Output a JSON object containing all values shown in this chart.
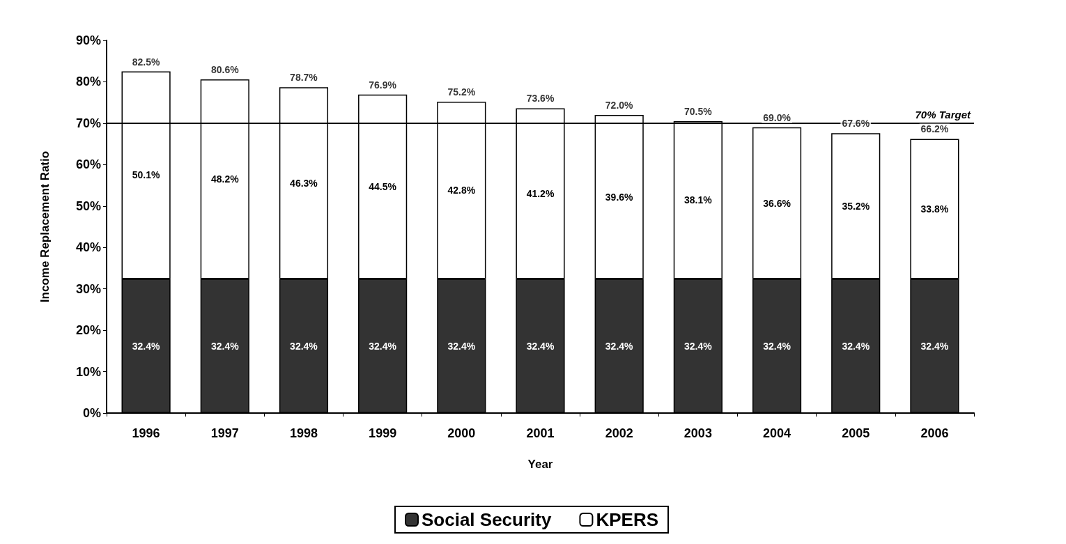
{
  "chart_data": {
    "type": "bar",
    "stacked": true,
    "xlabel": "Year",
    "ylabel": "Income Replacement Ratio",
    "categories": [
      "1996",
      "1997",
      "1998",
      "1999",
      "2000",
      "2001",
      "2002",
      "2003",
      "2004",
      "2005",
      "2006"
    ],
    "series": [
      {
        "name": "Social Security",
        "color": "#333333",
        "values": [
          32.4,
          32.4,
          32.4,
          32.4,
          32.4,
          32.4,
          32.4,
          32.4,
          32.4,
          32.4,
          32.4
        ],
        "value_labels": [
          "32.4%",
          "32.4%",
          "32.4%",
          "32.4%",
          "32.4%",
          "32.4%",
          "32.4%",
          "32.4%",
          "32.4%",
          "32.4%",
          "32.4%"
        ]
      },
      {
        "name": "KPERS",
        "color": "#ffffff",
        "values": [
          50.1,
          48.2,
          46.3,
          44.5,
          42.8,
          41.2,
          39.6,
          38.1,
          36.6,
          35.2,
          33.8
        ],
        "value_labels": [
          "50.1%",
          "48.2%",
          "46.3%",
          "44.5%",
          "42.8%",
          "41.2%",
          "39.6%",
          "38.1%",
          "36.6%",
          "35.2%",
          "33.8%"
        ]
      }
    ],
    "totals": [
      "82.5%",
      "80.6%",
      "78.7%",
      "76.9%",
      "75.2%",
      "73.6%",
      "72.0%",
      "70.5%",
      "69.0%",
      "67.6%",
      "66.2%"
    ],
    "ylim": [
      0,
      90
    ],
    "yticks": [
      {
        "value": 0,
        "label": "0%"
      },
      {
        "value": 10,
        "label": "10%"
      },
      {
        "value": 20,
        "label": "20%"
      },
      {
        "value": 30,
        "label": "30%"
      },
      {
        "value": 40,
        "label": "40%"
      },
      {
        "value": 50,
        "label": "50%"
      },
      {
        "value": 60,
        "label": "60%"
      },
      {
        "value": 70,
        "label": "70%"
      },
      {
        "value": 80,
        "label": "80%"
      },
      {
        "value": 90,
        "label": "90%"
      }
    ],
    "ref_lines": [
      {
        "axis": "y",
        "value": 70,
        "label": "70% Target",
        "color": "#000000"
      }
    ],
    "grid": false,
    "legend": "bottom"
  }
}
